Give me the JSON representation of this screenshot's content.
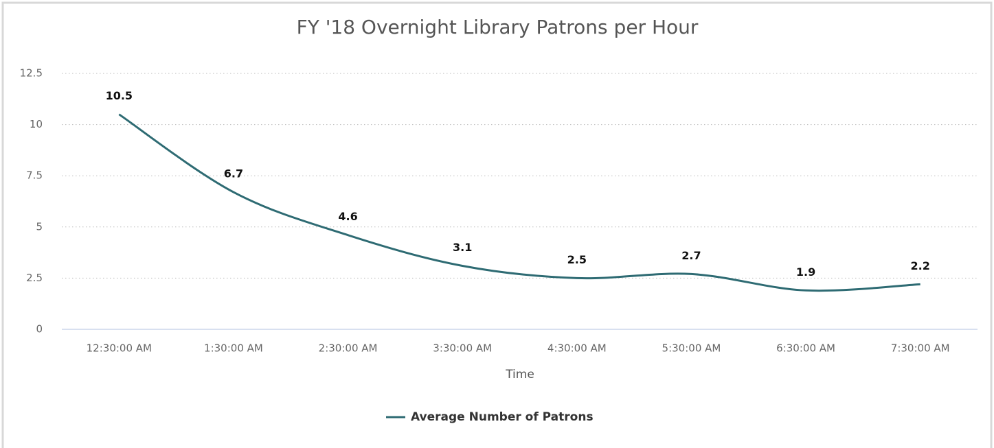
{
  "chart_data": {
    "type": "line",
    "title": "FY '18 Overnight Library Patrons per Hour",
    "x_label": "Time",
    "categories": [
      "12:30:00 AM",
      "1:30:00 AM",
      "2:30:00 AM",
      "3:30:00 AM",
      "4:30:00 AM",
      "5:30:00 AM",
      "6:30:00 AM",
      "7:30:00 AM"
    ],
    "series": [
      {
        "name": "Average Number of Patrons",
        "color": "#2e6b73",
        "values": [
          10.5,
          6.7,
          4.6,
          3.1,
          2.5,
          2.7,
          1.9,
          2.2
        ]
      }
    ],
    "ylim": [
      0,
      12.5
    ],
    "yticks": [
      0,
      2.5,
      5,
      7.5,
      10,
      12.5
    ],
    "grid": true,
    "smooth": true,
    "legend": "bottom"
  }
}
